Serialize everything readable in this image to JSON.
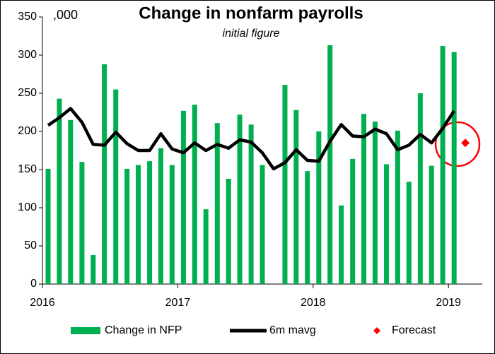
{
  "chart_data": {
    "type": "bar",
    "title": "Change in nonfarm payrolls",
    "subtitle": "initial figure",
    "y_unit_label": ",000",
    "x": [
      2016.042,
      2016.125,
      2016.208,
      2016.292,
      2016.375,
      2016.458,
      2016.542,
      2016.625,
      2016.708,
      2016.792,
      2016.875,
      2016.958,
      2017.042,
      2017.125,
      2017.208,
      2017.292,
      2017.375,
      2017.458,
      2017.542,
      2017.625,
      2017.708,
      2017.792,
      2017.875,
      2017.958,
      2018.042,
      2018.125,
      2018.208,
      2018.292,
      2018.375,
      2018.458,
      2018.542,
      2018.625,
      2018.708,
      2018.792,
      2018.875,
      2018.958,
      2019.042
    ],
    "series": [
      {
        "name": "Change in NFP",
        "type": "bar",
        "color": "#00b050",
        "values": [
          151,
          243,
          215,
          160,
          38,
          288,
          255,
          151,
          156,
          161,
          178,
          156,
          227,
          235,
          98,
          211,
          138,
          222,
          209,
          156,
          null,
          261,
          228,
          148,
          200,
          313,
          103,
          164,
          223,
          213,
          157,
          201,
          134,
          250,
          155,
          312,
          304
        ]
      },
      {
        "name": "6m mavg",
        "type": "line",
        "color": "#000000",
        "values": [
          208,
          218,
          230,
          212,
          183,
          182,
          199,
          184,
          175,
          175,
          197,
          177,
          172,
          185,
          175,
          183,
          178,
          189,
          186,
          172,
          151,
          159,
          176,
          162,
          161,
          187,
          209,
          194,
          193,
          203,
          197,
          176,
          182,
          196,
          185,
          204,
          227
        ]
      },
      {
        "name": "Forecast",
        "type": "scatter",
        "color": "#ff0000",
        "x": [
          2019.125
        ],
        "values": [
          185
        ]
      }
    ],
    "xlim": [
      2016,
      2019.25
    ],
    "xticks": [
      2016,
      2017,
      2018,
      2019
    ],
    "ylim": [
      0,
      350
    ],
    "yticks": [
      0,
      50,
      100,
      150,
      200,
      250,
      300,
      350
    ],
    "grid": false,
    "legend": "bottom"
  }
}
